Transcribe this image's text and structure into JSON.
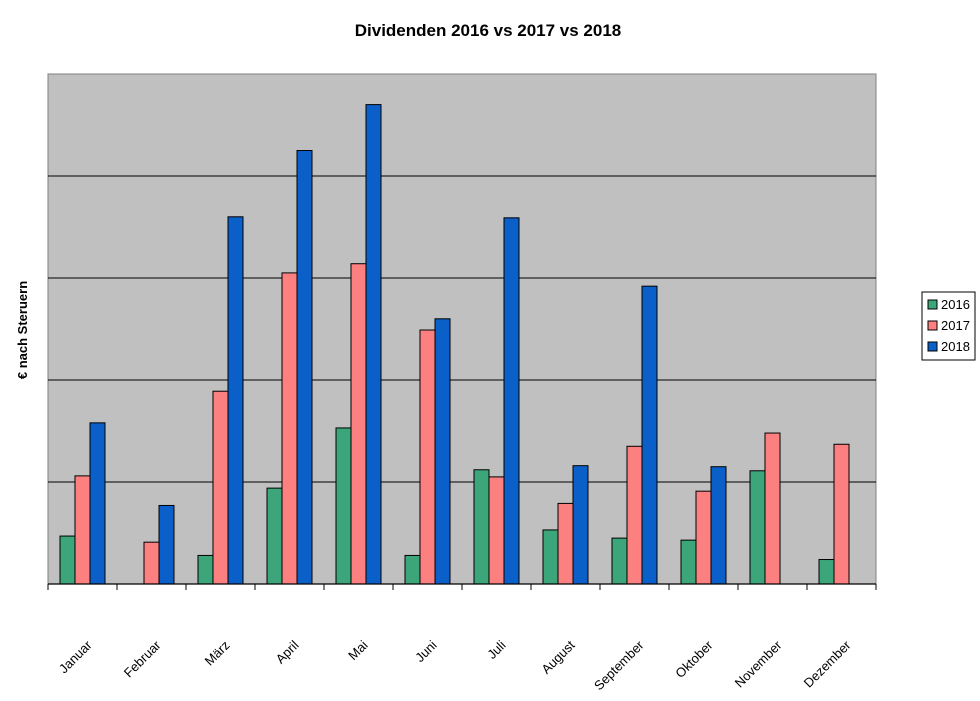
{
  "chart_data": {
    "type": "bar",
    "title": "Dividenden 2016 vs 2017 vs 2018",
    "xlabel": "",
    "ylabel": "€ nach Steruern",
    "ylim": [
      0,
      5
    ],
    "grid": true,
    "legend_position": "right",
    "categories": [
      "Januar",
      "Februar",
      "März",
      "April",
      "Mai",
      "Juni",
      "Juli",
      "August",
      "September",
      "Oktober",
      "November",
      "Dezember"
    ],
    "series": [
      {
        "name": "2016",
        "color": "#3ca57a",
        "values": [
          0.47,
          0,
          0.28,
          0.94,
          1.53,
          0.28,
          1.12,
          0.53,
          0.45,
          0.43,
          1.11,
          0.24
        ]
      },
      {
        "name": "2017",
        "color": "#fc8080",
        "values": [
          1.06,
          0.41,
          1.89,
          3.05,
          3.14,
          2.49,
          1.05,
          0.79,
          1.35,
          0.91,
          1.48,
          1.37
        ]
      },
      {
        "name": "2018",
        "color": "#0a5fc8",
        "values": [
          1.58,
          0.77,
          3.6,
          4.25,
          4.7,
          2.6,
          3.59,
          1.16,
          2.92,
          1.15,
          0,
          0
        ]
      }
    ]
  }
}
